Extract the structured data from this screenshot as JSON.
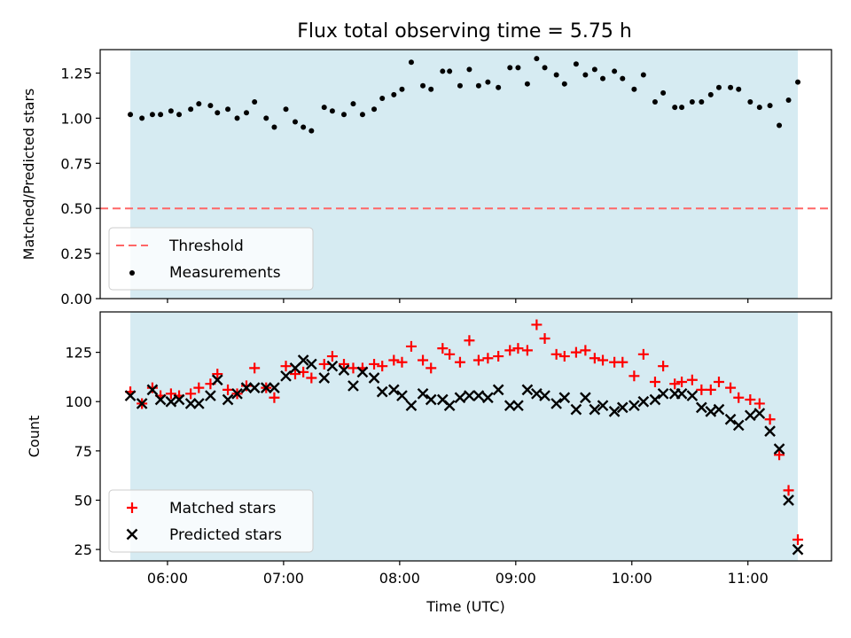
{
  "title": "Flux total observing time = 5.75 h",
  "colors": {
    "span_fill": "#add8e6",
    "threshold": "#ff6666",
    "matched": "#ff0000",
    "predicted": "#000000",
    "measurements": "#000000"
  },
  "chart_data": [
    {
      "type": "scatter",
      "ylabel": "Matched/Predicted stars",
      "xlim": [
        5.42,
        11.72
      ],
      "ylim": [
        0.0,
        1.38
      ],
      "yticks": [
        0.0,
        0.25,
        0.5,
        0.75,
        1.0,
        1.25
      ],
      "ytick_labels": [
        "0.00",
        "0.25",
        "0.50",
        "0.75",
        "1.00",
        "1.25"
      ],
      "observing_span": [
        5.68,
        11.43
      ],
      "threshold": 0.5,
      "grid": false,
      "legend_position": "lower-left",
      "legend": [
        {
          "label": "Threshold",
          "kind": "dashed-line",
          "color": "#ff6666"
        },
        {
          "label": "Measurements",
          "kind": "dot",
          "color": "#000000"
        }
      ],
      "series": [
        {
          "name": "Measurements",
          "marker": "dot",
          "x": [
            5.68,
            5.78,
            5.87,
            5.94,
            6.03,
            6.1,
            6.2,
            6.27,
            6.37,
            6.43,
            6.52,
            6.6,
            6.68,
            6.75,
            6.85,
            6.92,
            7.02,
            7.1,
            7.17,
            7.24,
            7.35,
            7.42,
            7.52,
            7.6,
            7.68,
            7.78,
            7.85,
            7.95,
            8.02,
            8.1,
            8.2,
            8.27,
            8.37,
            8.43,
            8.52,
            8.6,
            8.68,
            8.76,
            8.85,
            8.95,
            9.02,
            9.1,
            9.18,
            9.25,
            9.35,
            9.42,
            9.52,
            9.6,
            9.68,
            9.75,
            9.85,
            9.92,
            10.02,
            10.1,
            10.2,
            10.27,
            10.37,
            10.43,
            10.52,
            10.6,
            10.68,
            10.75,
            10.85,
            10.92,
            11.02,
            11.1,
            11.19,
            11.27,
            11.35,
            11.43
          ],
          "y": [
            1.02,
            1.0,
            1.02,
            1.02,
            1.04,
            1.02,
            1.05,
            1.08,
            1.07,
            1.03,
            1.05,
            1.0,
            1.03,
            1.09,
            1.0,
            0.95,
            1.05,
            0.98,
            0.95,
            0.93,
            1.06,
            1.04,
            1.02,
            1.08,
            1.02,
            1.05,
            1.11,
            1.13,
            1.16,
            1.31,
            1.18,
            1.16,
            1.26,
            1.26,
            1.18,
            1.27,
            1.18,
            1.2,
            1.17,
            1.28,
            1.28,
            1.19,
            1.33,
            1.28,
            1.24,
            1.19,
            1.3,
            1.24,
            1.27,
            1.22,
            1.26,
            1.22,
            1.16,
            1.24,
            1.09,
            1.14,
            1.06,
            1.06,
            1.09,
            1.09,
            1.13,
            1.17,
            1.17,
            1.16,
            1.09,
            1.06,
            1.07,
            0.96,
            1.1,
            1.2
          ]
        }
      ]
    },
    {
      "type": "scatter",
      "xlabel": "Time (UTC)",
      "ylabel": "Count",
      "xlim": [
        5.42,
        11.72
      ],
      "ylim": [
        19.2,
        145.5
      ],
      "xticks": [
        6,
        7,
        8,
        9,
        10,
        11
      ],
      "xtick_labels": [
        "06:00",
        "07:00",
        "08:00",
        "09:00",
        "10:00",
        "11:00"
      ],
      "yticks": [
        25,
        50,
        75,
        100,
        125
      ],
      "ytick_labels": [
        "25",
        "50",
        "75",
        "100",
        "125"
      ],
      "observing_span": [
        5.68,
        11.43
      ],
      "grid": false,
      "legend_position": "lower-left",
      "legend": [
        {
          "label": "Matched stars",
          "kind": "plus",
          "color": "#ff0000"
        },
        {
          "label": "Predicted stars",
          "kind": "x",
          "color": "#000000"
        }
      ],
      "series": [
        {
          "name": "Matched stars",
          "marker": "plus",
          "x": [
            5.68,
            5.78,
            5.87,
            5.94,
            6.03,
            6.1,
            6.2,
            6.27,
            6.37,
            6.43,
            6.52,
            6.6,
            6.68,
            6.75,
            6.85,
            6.92,
            7.02,
            7.1,
            7.17,
            7.24,
            7.35,
            7.42,
            7.52,
            7.6,
            7.68,
            7.78,
            7.85,
            7.95,
            8.02,
            8.1,
            8.2,
            8.27,
            8.37,
            8.43,
            8.52,
            8.6,
            8.68,
            8.76,
            8.85,
            8.95,
            9.02,
            9.1,
            9.18,
            9.25,
            9.35,
            9.42,
            9.52,
            9.6,
            9.68,
            9.75,
            9.85,
            9.92,
            10.02,
            10.1,
            10.2,
            10.27,
            10.37,
            10.43,
            10.52,
            10.6,
            10.68,
            10.75,
            10.85,
            10.92,
            11.02,
            11.1,
            11.19,
            11.27,
            11.35,
            11.43
          ],
          "y": [
            105,
            99,
            107,
            103,
            104,
            103,
            104,
            107,
            109,
            114,
            106,
            104,
            108,
            117,
            107,
            102,
            118,
            114,
            115,
            112,
            119,
            123,
            119,
            117,
            117,
            119,
            118,
            121,
            120,
            128,
            121,
            117,
            127,
            124,
            120,
            131,
            121,
            122,
            123,
            126,
            127,
            126,
            139,
            132,
            124,
            123,
            125,
            126,
            122,
            121,
            120,
            120,
            113,
            124,
            110,
            118,
            109,
            110,
            111,
            106,
            106,
            110,
            107,
            102,
            101,
            99,
            91,
            73,
            55,
            30
          ]
        },
        {
          "name": "Predicted stars",
          "marker": "x",
          "x": [
            5.68,
            5.78,
            5.87,
            5.94,
            6.03,
            6.1,
            6.2,
            6.27,
            6.37,
            6.43,
            6.52,
            6.6,
            6.68,
            6.75,
            6.85,
            6.92,
            7.02,
            7.1,
            7.17,
            7.24,
            7.35,
            7.42,
            7.52,
            7.6,
            7.68,
            7.78,
            7.85,
            7.95,
            8.02,
            8.1,
            8.2,
            8.27,
            8.37,
            8.43,
            8.52,
            8.6,
            8.68,
            8.76,
            8.85,
            8.95,
            9.02,
            9.1,
            9.18,
            9.25,
            9.35,
            9.42,
            9.52,
            9.6,
            9.68,
            9.75,
            9.85,
            9.92,
            10.02,
            10.1,
            10.2,
            10.27,
            10.37,
            10.43,
            10.52,
            10.6,
            10.68,
            10.75,
            10.85,
            10.92,
            11.02,
            11.1,
            11.19,
            11.27,
            11.35,
            11.43
          ],
          "y": [
            103,
            99,
            106,
            101,
            100,
            101,
            99,
            99,
            103,
            111,
            101,
            104,
            107,
            107,
            107,
            107,
            113,
            117,
            121,
            119,
            112,
            118,
            116,
            108,
            115,
            112,
            105,
            106,
            103,
            98,
            104,
            101,
            101,
            98,
            102,
            103,
            103,
            102,
            106,
            98,
            98,
            106,
            104,
            103,
            99,
            102,
            96,
            102,
            96,
            98,
            95,
            97,
            98,
            100,
            101,
            104,
            104,
            104,
            103,
            97,
            95,
            96,
            91,
            88,
            93,
            94,
            85,
            76,
            50,
            25
          ]
        }
      ]
    }
  ]
}
